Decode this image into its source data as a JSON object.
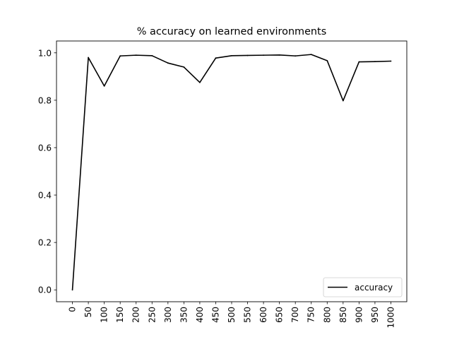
{
  "chart_data": {
    "type": "line",
    "title": "% accuracy on learned environments",
    "xlabel": "",
    "ylabel": "",
    "x": [
      0,
      50,
      100,
      150,
      200,
      250,
      300,
      350,
      400,
      450,
      500,
      550,
      600,
      650,
      700,
      750,
      800,
      850,
      900,
      950,
      1000
    ],
    "x_tick_labels": [
      "0",
      "50",
      "100",
      "150",
      "200",
      "250",
      "300",
      "350",
      "400",
      "450",
      "500",
      "550",
      "600",
      "650",
      "700",
      "750",
      "800",
      "850",
      "900",
      "950",
      "1000"
    ],
    "y_ticks": [
      0.0,
      0.2,
      0.4,
      0.6,
      0.8,
      1.0
    ],
    "y_tick_labels": [
      "0.0",
      "0.2",
      "0.4",
      "0.6",
      "0.8",
      "1.0"
    ],
    "xlim": [
      -50,
      1050
    ],
    "ylim": [
      -0.05,
      1.05
    ],
    "grid": false,
    "legend_position": "lower-right",
    "series": [
      {
        "name": "accuracy",
        "color": "#000000",
        "values": [
          0.0,
          0.98,
          0.86,
          0.987,
          0.99,
          0.988,
          0.957,
          0.94,
          0.875,
          0.978,
          0.988,
          0.989,
          0.99,
          0.991,
          0.987,
          0.993,
          0.967,
          0.798,
          0.962,
          0.963,
          0.965
        ]
      }
    ]
  }
}
